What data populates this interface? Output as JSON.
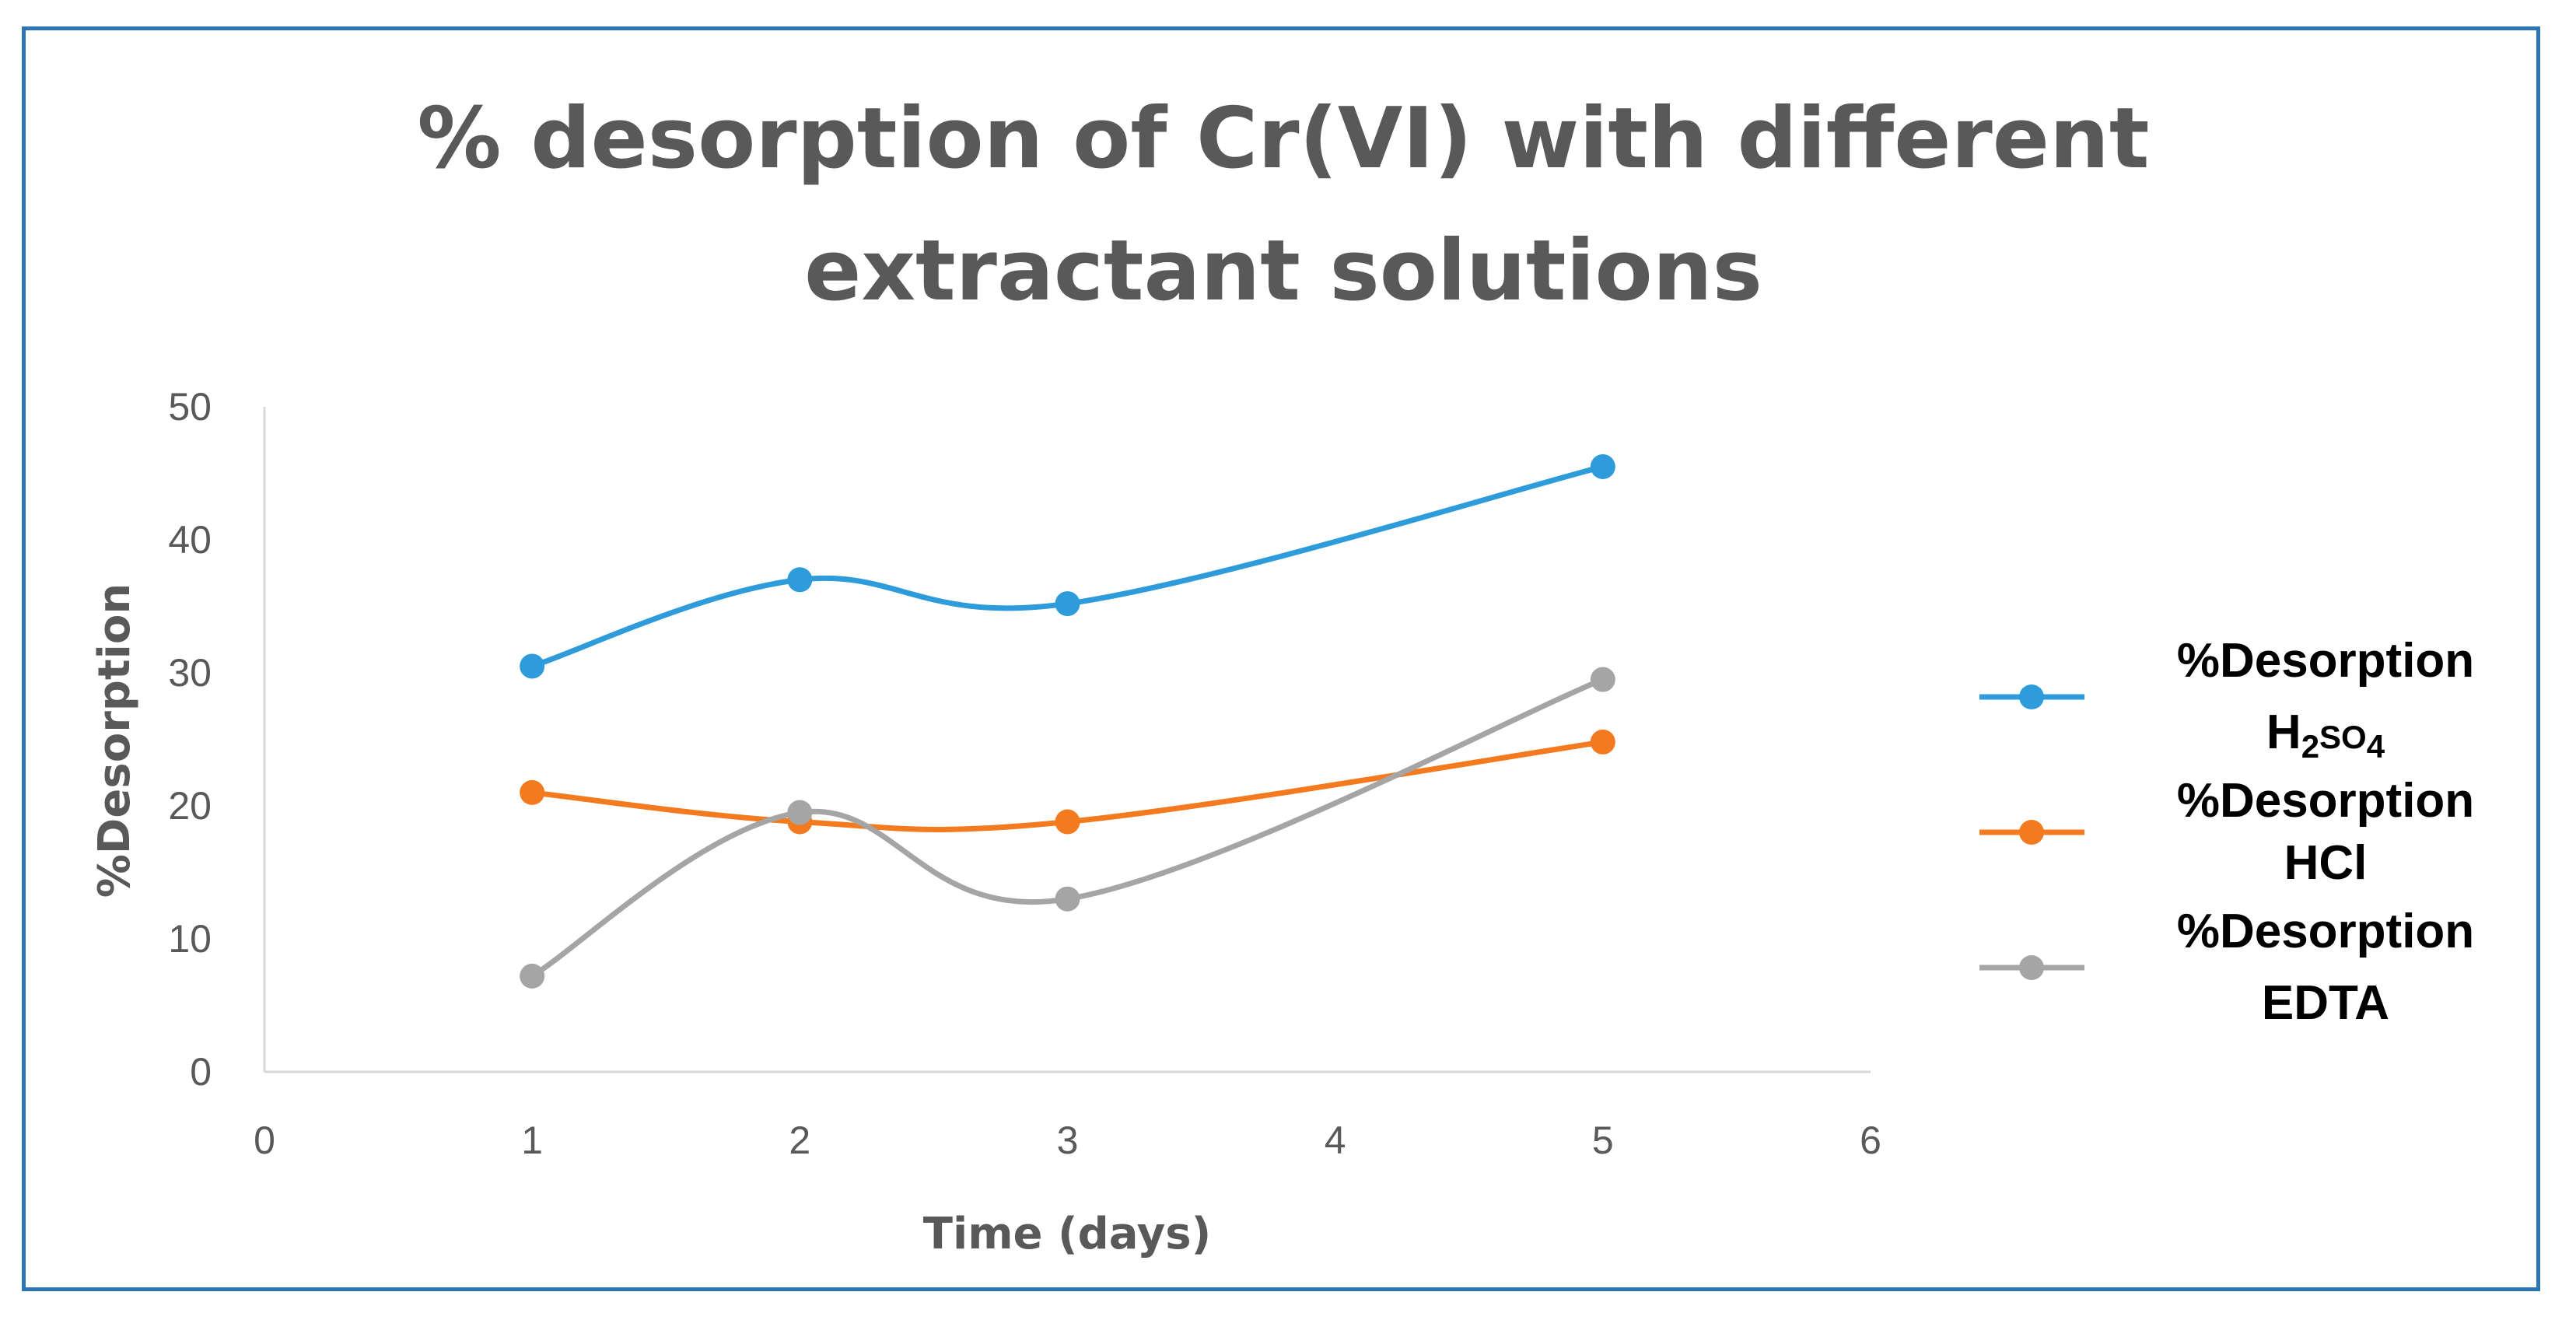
{
  "chart_data": {
    "type": "line",
    "title_lines": [
      "% desorption of Cr(VI) with different",
      "extractant solutions"
    ],
    "xlabel": "Time (days)",
    "ylabel": "%Desorption",
    "xlim": [
      0,
      6
    ],
    "ylim": [
      0,
      50
    ],
    "x_ticks": [
      "0",
      "1",
      "2",
      "3",
      "4",
      "5",
      "6"
    ],
    "y_ticks": [
      "0",
      "10",
      "20",
      "30",
      "40",
      "50"
    ],
    "grid": false,
    "smooth": true,
    "legend_position": "right",
    "series": [
      {
        "name_lines": [
          "%Desorption",
          "H2SO4"
        ],
        "color": "#2E9BDA",
        "x": [
          1,
          2,
          3,
          5
        ],
        "values": [
          30.5,
          37,
          35.2,
          45.5
        ]
      },
      {
        "name_lines": [
          "%Desorption",
          "HCl"
        ],
        "color": "#F47A20",
        "x": [
          1,
          2,
          3,
          5
        ],
        "values": [
          21,
          18.8,
          18.8,
          24.8
        ]
      },
      {
        "name_lines": [
          "%Desorption",
          "EDTA"
        ],
        "color": "#A5A5A5",
        "x": [
          1,
          2,
          3,
          5
        ],
        "values": [
          7.2,
          19.5,
          13,
          29.5
        ]
      }
    ]
  }
}
